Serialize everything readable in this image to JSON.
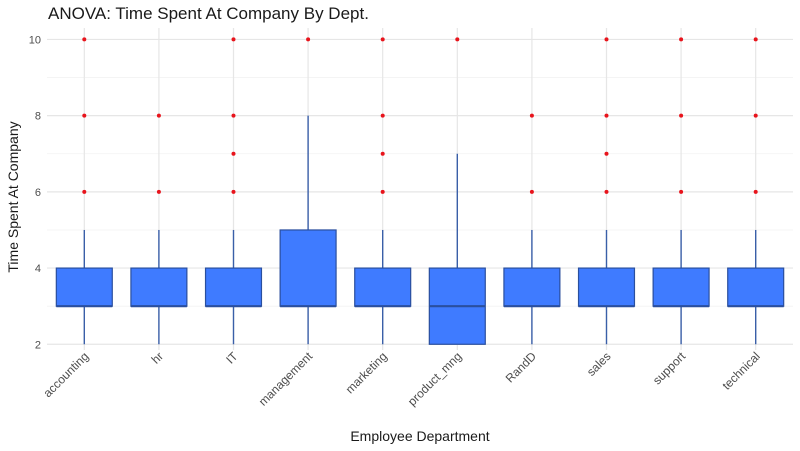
{
  "chart_data": {
    "type": "boxplot",
    "title": "ANOVA: Time Spent At Company By Dept.",
    "xlabel": "Employee Department",
    "ylabel": "Time Spent At Company",
    "ylim": [
      1.85,
      10.3
    ],
    "yticks": [
      2,
      4,
      6,
      8,
      10
    ],
    "grid": true,
    "categories": [
      "accounting",
      "hr",
      "IT",
      "management",
      "marketing",
      "product_mng",
      "RandD",
      "sales",
      "support",
      "technical"
    ],
    "boxes": [
      {
        "category": "accounting",
        "whisker_low": 2,
        "q1": 3,
        "median": 3,
        "q3": 4,
        "whisker_high": 5,
        "outliers": [
          6,
          8,
          10
        ]
      },
      {
        "category": "hr",
        "whisker_low": 2,
        "q1": 3,
        "median": 3,
        "q3": 4,
        "whisker_high": 5,
        "outliers": [
          6,
          8
        ]
      },
      {
        "category": "IT",
        "whisker_low": 2,
        "q1": 3,
        "median": 3,
        "q3": 4,
        "whisker_high": 5,
        "outliers": [
          6,
          7,
          8,
          10
        ]
      },
      {
        "category": "management",
        "whisker_low": 2,
        "q1": 3,
        "median": 3,
        "q3": 5,
        "whisker_high": 8,
        "outliers": [
          10
        ]
      },
      {
        "category": "marketing",
        "whisker_low": 2,
        "q1": 3,
        "median": 3,
        "q3": 4,
        "whisker_high": 5,
        "outliers": [
          6,
          7,
          8,
          10
        ]
      },
      {
        "category": "product_mng",
        "whisker_low": 2,
        "q1": 2,
        "median": 3,
        "q3": 4,
        "whisker_high": 7,
        "outliers": [
          10
        ]
      },
      {
        "category": "RandD",
        "whisker_low": 2,
        "q1": 3,
        "median": 3,
        "q3": 4,
        "whisker_high": 5,
        "outliers": [
          6,
          8
        ]
      },
      {
        "category": "sales",
        "whisker_low": 2,
        "q1": 3,
        "median": 3,
        "q3": 4,
        "whisker_high": 5,
        "outliers": [
          6,
          7,
          8,
          10
        ]
      },
      {
        "category": "support",
        "whisker_low": 2,
        "q1": 3,
        "median": 3,
        "q3": 4,
        "whisker_high": 5,
        "outliers": [
          6,
          8,
          10
        ]
      },
      {
        "category": "technical",
        "whisker_low": 2,
        "q1": 3,
        "median": 3,
        "q3": 4,
        "whisker_high": 5,
        "outliers": [
          6,
          8,
          10
        ]
      }
    ],
    "colors": {
      "box_fill": "#3f7bff",
      "box_stroke": "#2a4f9e",
      "whisker": "#3a5fa8",
      "outlier": "#e8141c",
      "grid_major": "#e6e6e6",
      "grid_minor": "#f2f2f2"
    }
  }
}
